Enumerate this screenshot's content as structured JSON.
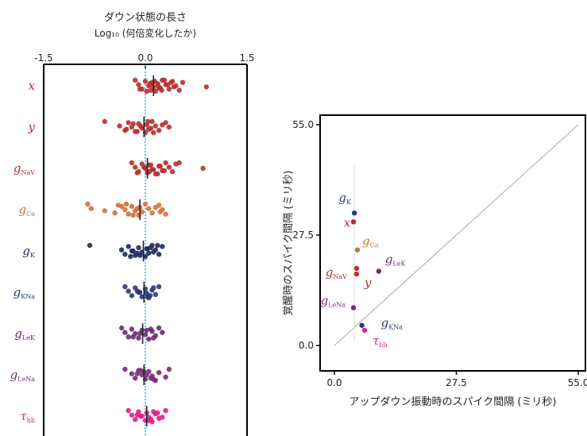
{
  "chart_data": [
    {
      "type": "scatter",
      "title": "ダウン状態の長さ",
      "subtitle": "Log₁₀ (何倍変化したか)",
      "x_ticks": [
        "-1.5",
        "0.0",
        "1.5"
      ],
      "xlim": [
        -1.5,
        1.5
      ],
      "reference_line_x": 0.0,
      "rows": [
        {
          "label": "x",
          "color": "#b5302d",
          "median": 0.12,
          "points": [
            -0.15,
            -0.1,
            -0.05,
            0.0,
            0.05,
            0.08,
            0.1,
            0.12,
            0.15,
            0.18,
            0.2,
            0.25,
            0.3,
            0.35,
            0.4,
            0.45,
            0.5,
            0.55,
            0.9,
            0.02,
            0.07,
            0.22,
            0.28,
            0.33,
            -0.08,
            0.14,
            0.19,
            0.24,
            0.38,
            0.42
          ]
        },
        {
          "label": "y",
          "color": "#b5302d",
          "median": -0.02,
          "points": [
            -0.6,
            -0.38,
            -0.3,
            -0.25,
            -0.2,
            -0.15,
            -0.1,
            -0.05,
            0.0,
            0.02,
            0.05,
            0.1,
            0.15,
            0.2,
            0.3,
            0.35,
            -0.12,
            -0.18,
            0.08,
            0.12,
            0.25,
            -0.28,
            0.04,
            -0.07
          ]
        },
        {
          "label": "gNaV",
          "color": "#b5302d",
          "median": 0.03,
          "points": [
            -0.2,
            -0.15,
            -0.1,
            -0.05,
            0.0,
            0.03,
            0.05,
            0.1,
            0.15,
            0.2,
            0.25,
            0.3,
            0.35,
            0.4,
            0.45,
            0.85,
            -0.12,
            0.08,
            0.12,
            0.18,
            0.22,
            0.28,
            0.5,
            -0.02,
            0.06
          ]
        },
        {
          "label": "gCa",
          "color": "#d2703a",
          "median": -0.08,
          "points": [
            -0.85,
            -0.8,
            -0.45,
            -0.4,
            -0.3,
            -0.25,
            -0.2,
            -0.15,
            -0.1,
            -0.08,
            -0.05,
            0.0,
            0.05,
            0.1,
            0.2,
            0.25,
            0.3,
            -0.35,
            -0.6,
            -0.18,
            0.15,
            0.22,
            -0.28,
            -0.12
          ]
        },
        {
          "label": "gK",
          "color": "#1e2a5e",
          "median": -0.03,
          "points": [
            -0.82,
            -0.35,
            -0.3,
            -0.25,
            -0.2,
            -0.15,
            -0.1,
            -0.05,
            0.0,
            0.03,
            0.05,
            0.1,
            0.15,
            0.2,
            0.25,
            -0.18,
            -0.08,
            0.08,
            0.12,
            -0.22,
            0.02,
            -0.12,
            0.18
          ]
        },
        {
          "label": "gKNa",
          "color": "#2b3a78",
          "median": -0.02,
          "points": [
            -0.3,
            -0.25,
            -0.2,
            -0.15,
            -0.1,
            -0.05,
            0.0,
            0.02,
            0.05,
            0.1,
            0.15,
            0.2,
            -0.12,
            0.07,
            0.12,
            -0.08,
            0.03
          ]
        },
        {
          "label": "gLeK",
          "color": "#6b2a72",
          "median": -0.04,
          "points": [
            -0.35,
            -0.3,
            -0.25,
            -0.2,
            -0.15,
            -0.1,
            -0.05,
            0.0,
            0.05,
            0.1,
            0.15,
            0.2,
            0.25,
            -0.18,
            0.08,
            -0.08,
            0.12,
            0.02
          ]
        },
        {
          "label": "gLeNa",
          "color": "#7a2a7a",
          "median": -0.02,
          "points": [
            -0.3,
            -0.2,
            -0.15,
            -0.1,
            -0.05,
            0.0,
            0.05,
            0.1,
            0.15,
            0.2,
            0.3,
            0.35,
            -0.12,
            0.08,
            -0.07,
            0.02,
            0.12,
            -0.02
          ]
        },
        {
          "label": "τhb",
          "color": "#e0208a",
          "median": 0.02,
          "points": [
            -0.25,
            -0.2,
            -0.15,
            -0.1,
            -0.05,
            0.0,
            0.02,
            0.05,
            0.1,
            0.15,
            0.2,
            0.3,
            -0.12,
            0.08,
            0.12,
            -0.07,
            0.04,
            0.18,
            0.25
          ]
        }
      ]
    },
    {
      "type": "scatter",
      "xlabel": "アップダウン振動時のスパイク間隔 (ミリ秒)",
      "ylabel": "覚醒時のスパイク間隔 (ミリ秒)",
      "xlim": [
        0.0,
        55.0
      ],
      "ylim": [
        0.0,
        55.0
      ],
      "x_ticks": [
        "0.0",
        "27.5",
        "55.0"
      ],
      "y_ticks": [
        "0.0",
        "27.5",
        "55.0"
      ],
      "diagonal": true,
      "points": [
        {
          "label": "gK",
          "x": 4.5,
          "y": 33.0,
          "color": "#2b3a78"
        },
        {
          "label": "x",
          "x": 4.3,
          "y": 30.8,
          "color": "#b5302d"
        },
        {
          "label": "gCa",
          "x": 5.2,
          "y": 23.8,
          "color": "#d2703a"
        },
        {
          "label": "gLeK",
          "x": 10.0,
          "y": 18.5,
          "color": "#6b2a72"
        },
        {
          "label": "gNaV",
          "x": 5.0,
          "y": 19.2,
          "color": "#b5302d"
        },
        {
          "label": "y",
          "x": 5.0,
          "y": 17.8,
          "color": "#b5302d"
        },
        {
          "label": "gLeNa",
          "x": 4.3,
          "y": 9.4,
          "color": "#7a2a7a"
        },
        {
          "label": "gKNa",
          "x": 6.2,
          "y": 5.0,
          "color": "#2b3a78"
        },
        {
          "label": "τhb",
          "x": 6.8,
          "y": 3.8,
          "color": "#e0208a"
        }
      ]
    }
  ],
  "row_labels": [
    {
      "main": "x",
      "sub": ""
    },
    {
      "main": "y",
      "sub": ""
    },
    {
      "main": "g",
      "sub": "NaV"
    },
    {
      "main": "g",
      "sub": "Ca"
    },
    {
      "main": "g",
      "sub": "K"
    },
    {
      "main": "g",
      "sub": "KNa"
    },
    {
      "main": "g",
      "sub": "LeK"
    },
    {
      "main": "g",
      "sub": "LeNa"
    },
    {
      "main": "τ",
      "sub": "hb"
    }
  ],
  "scatter_labels": [
    {
      "main": "g",
      "sub": "K"
    },
    {
      "main": "x",
      "sub": ""
    },
    {
      "main": "g",
      "sub": "Ca"
    },
    {
      "main": "g",
      "sub": "LeK"
    },
    {
      "main": "g",
      "sub": "NaV"
    },
    {
      "main": "y",
      "sub": ""
    },
    {
      "main": "g",
      "sub": "LeNa"
    },
    {
      "main": "g",
      "sub": "KNa"
    },
    {
      "main": "τ",
      "sub": "hb"
    }
  ]
}
